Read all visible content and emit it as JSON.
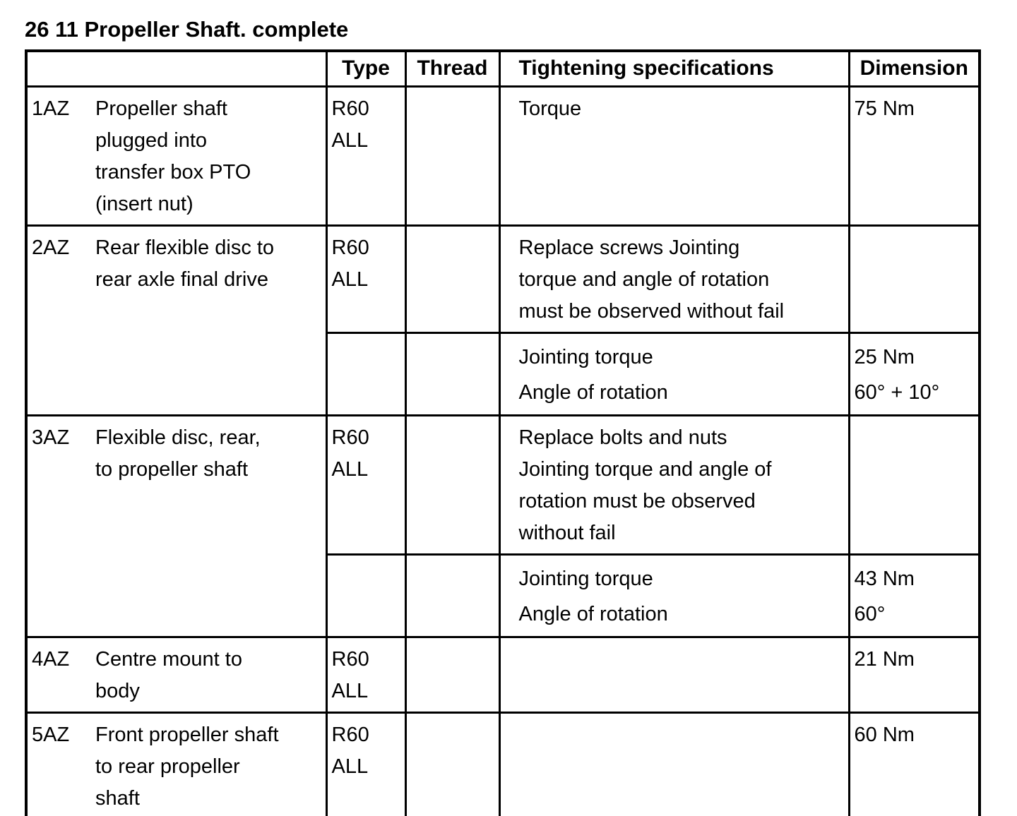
{
  "page": {
    "title": "26 11 Propeller Shaft. complete"
  },
  "table": {
    "headers": {
      "item": "",
      "type": "Type",
      "thread": "Thread",
      "tightening": "Tightening specifications",
      "dimension": "Dimension"
    },
    "rows": [
      {
        "id": "1AZ",
        "description_lines": [
          "Propeller shaft",
          "plugged into",
          "transfer box PTO",
          "(insert nut)"
        ],
        "type_lines": [
          "R60",
          "ALL"
        ],
        "thread": "",
        "tightening_lines": [
          "Torque"
        ],
        "dimension_lines": [
          "75 Nm"
        ]
      },
      {
        "id": "2AZ",
        "description_lines": [
          "Rear flexible disc to",
          "rear axle final drive"
        ],
        "type_lines": [
          "R60",
          "ALL"
        ],
        "thread": "",
        "tightening_lines": [
          "Replace screws Jointing",
          "torque and angle of rotation",
          "must be observed without fail"
        ],
        "dimension_lines": [],
        "sub": {
          "tightening_lines": [
            "Jointing torque",
            "Angle of rotation"
          ],
          "dimension_lines": [
            "25 Nm",
            "60° + 10°"
          ]
        }
      },
      {
        "id": "3AZ",
        "description_lines": [
          "Flexible disc, rear,",
          "to propeller shaft"
        ],
        "type_lines": [
          "R60",
          "ALL"
        ],
        "thread": "",
        "tightening_lines": [
          "Replace bolts and nuts",
          "Jointing torque and angle of",
          "rotation must be observed",
          "without fail"
        ],
        "dimension_lines": [],
        "sub": {
          "tightening_lines": [
            "Jointing torque",
            "Angle of rotation"
          ],
          "dimension_lines": [
            "43 Nm",
            "60°"
          ]
        }
      },
      {
        "id": "4AZ",
        "description_lines": [
          "Centre mount to",
          "body"
        ],
        "type_lines": [
          "R60",
          "ALL"
        ],
        "thread": "",
        "tightening_lines": [],
        "dimension_lines": [
          "21 Nm"
        ]
      },
      {
        "id": "5AZ",
        "description_lines": [
          "Front propeller shaft",
          "to rear propeller",
          "shaft"
        ],
        "type_lines": [
          "R60",
          "ALL"
        ],
        "thread": "",
        "tightening_lines": [],
        "dimension_lines": [
          "60 Nm"
        ]
      }
    ]
  }
}
